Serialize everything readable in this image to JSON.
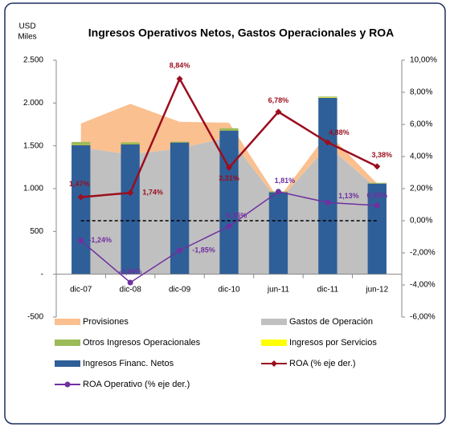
{
  "chart_data": {
    "type": "combo",
    "title": "Ingresos Operativos Netos, Gastos Operacionales y ROA",
    "ylabel": [
      "USD",
      "Miles"
    ],
    "categories": [
      "dic-07",
      "dic-08",
      "dic-09",
      "dic-10",
      "jun-11",
      "dic-11",
      "jun-12"
    ],
    "ylim": [
      -500,
      2500
    ],
    "yticks": [
      -500,
      {
        "value": 0,
        "label": "-"
      },
      500,
      {
        "value": 1000,
        "label": "1.000"
      },
      {
        "value": 1500,
        "label": "1.500"
      },
      {
        "value": 2000,
        "label": "2.000"
      },
      {
        "value": 2500,
        "label": "2.500"
      }
    ],
    "y2lim": [
      -6,
      10
    ],
    "y2ticks": [
      {
        "value": -6,
        "label": "-6,00%"
      },
      {
        "value": -4,
        "label": "-4,00%"
      },
      {
        "value": -2,
        "label": "-2,00%"
      },
      {
        "value": 0,
        "label": "0,00%"
      },
      {
        "value": 2,
        "label": "2,00%"
      },
      {
        "value": 4,
        "label": "4,00%"
      },
      {
        "value": 6,
        "label": "6,00%"
      },
      {
        "value": 8,
        "label": "8,00%"
      },
      {
        "value": 10,
        "label": "10,00%"
      }
    ],
    "series": [
      {
        "name": "Provisiones",
        "kind": "area",
        "stack": "area",
        "color": "#fac090",
        "values": [
          280,
          590,
          310,
          170,
          30,
          150,
          60
        ]
      },
      {
        "name": "Gastos de Operación",
        "kind": "area",
        "stack": "area",
        "color": "#c0c0c0",
        "values": [
          1480,
          1400,
          1470,
          1600,
          850,
          1500,
          1000
        ]
      },
      {
        "name": "Otros Ingresos Operacionales",
        "kind": "bar",
        "stack": "bar",
        "color": "#9bbb59",
        "values": [
          30,
          15,
          5,
          20,
          5,
          10,
          5
        ]
      },
      {
        "name": "Ingresos por Servicios",
        "kind": "bar",
        "stack": "bar",
        "color": "#ffff00",
        "values": [
          5,
          5,
          3,
          5,
          3,
          5,
          3
        ]
      },
      {
        "name": "Ingresos Financ. Netos",
        "kind": "bar",
        "stack": "bar",
        "color": "#2f5f98",
        "values": [
          1510,
          1520,
          1540,
          1680,
          960,
          2060,
          1060
        ]
      },
      {
        "name": "ROA (% eje der.)",
        "kind": "line",
        "axis": "y2",
        "marker": "diamond",
        "color": "#9b0e1e",
        "values": [
          1.47,
          1.74,
          8.84,
          3.31,
          6.78,
          4.88,
          3.38
        ],
        "value_labels": [
          "1,47%",
          "1,74%",
          "8,84%",
          "3,31%",
          "6,78%",
          "4,88%",
          "3,38%"
        ]
      },
      {
        "name": "ROA Operativo (% eje der.)",
        "kind": "line",
        "axis": "y2",
        "marker": "circle",
        "color": "#7030a0",
        "values": [
          -1.24,
          -3.85,
          -1.85,
          -0.35,
          1.81,
          1.13,
          0.95
        ],
        "value_labels": [
          "-1,24%",
          "-3,85%",
          "-1,85%",
          "-0,35%",
          "1,81%",
          "1,13%",
          "0,95%"
        ]
      }
    ]
  }
}
